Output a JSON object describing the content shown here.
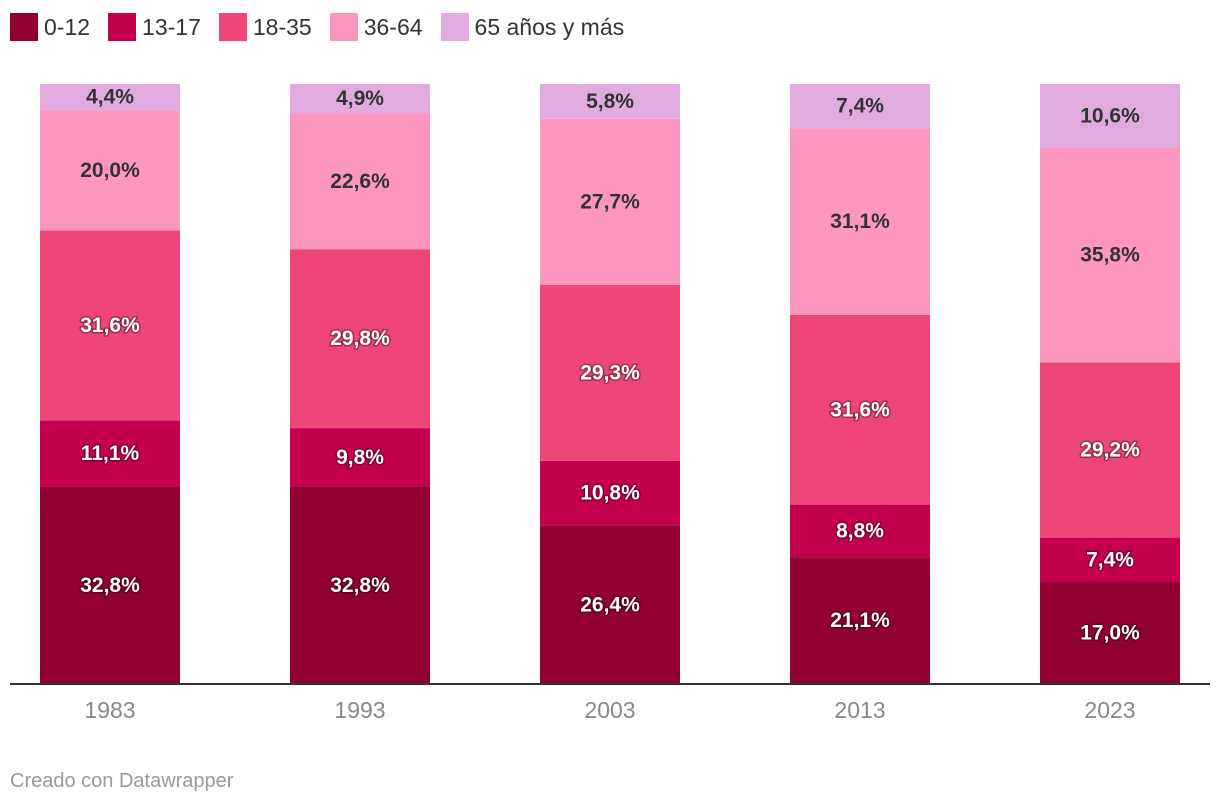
{
  "chart_data": {
    "type": "bar",
    "stacked": true,
    "orientation": "vertical",
    "categories": [
      "1983",
      "1993",
      "2003",
      "2013",
      "2023"
    ],
    "series": [
      {
        "name": "0-12",
        "color": "#920031",
        "label_color": "#ffffff",
        "values": [
          32.8,
          32.8,
          26.4,
          21.1,
          17.0
        ],
        "labels": [
          "32,8%",
          "32,8%",
          "26,4%",
          "21,1%",
          "17,0%"
        ]
      },
      {
        "name": "13-17",
        "color": "#c4004e",
        "label_color": "#ffffff",
        "values": [
          11.1,
          9.8,
          10.8,
          8.8,
          7.4
        ],
        "labels": [
          "11,1%",
          "9,8%",
          "10,8%",
          "8,8%",
          "7,4%"
        ]
      },
      {
        "name": "18-35",
        "color": "#ef4679",
        "label_color": "#ffffff",
        "values": [
          31.6,
          29.8,
          29.3,
          31.6,
          29.2
        ],
        "labels": [
          "31,6%",
          "29,8%",
          "29,3%",
          "31,6%",
          "29,2%"
        ]
      },
      {
        "name": "36-64",
        "color": "#fe97bf",
        "label_color": "#333333",
        "values": [
          20.0,
          22.6,
          27.7,
          31.1,
          35.8
        ],
        "labels": [
          "20,0%",
          "22,6%",
          "27,7%",
          "31,1%",
          "35,8%"
        ]
      },
      {
        "name": "65 años y más",
        "color": "#e2abe0",
        "label_color": "#333333",
        "values": [
          4.4,
          4.9,
          5.8,
          7.4,
          10.6
        ],
        "labels": [
          "4,4%",
          "4,9%",
          "5,8%",
          "7,4%",
          "10,6%"
        ]
      }
    ],
    "ylim": [
      0,
      100
    ],
    "title": "",
    "xlabel": "",
    "ylabel": "",
    "legend_position": "top-left",
    "grid": false
  },
  "footer": {
    "credit": "Creado con Datawrapper"
  }
}
